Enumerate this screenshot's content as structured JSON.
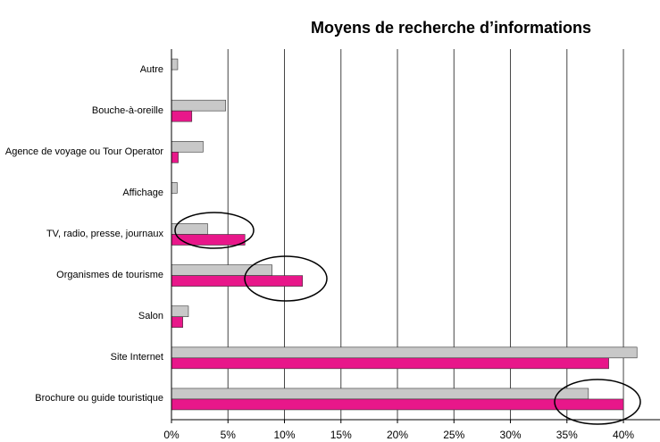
{
  "chart_data": {
    "type": "hbar",
    "title": "Moyens de recherche d’informations",
    "categories": [
      "Autre",
      "Bouche-à-oreille",
      "Agence de voyage ou Tour Operator",
      "Affichage",
      "TV, radio, presse, journaux",
      "Organismes de tourisme",
      "Salon",
      "Site Internet",
      "Brochure ou guide touristique"
    ],
    "series": [
      {
        "color": "#c8c8c8",
        "values": [
          0.55,
          4.8,
          2.8,
          0.5,
          3.2,
          8.9,
          1.5,
          41.2,
          36.9
        ]
      },
      {
        "color": "#e8178a",
        "values": [
          0,
          1.8,
          0.6,
          0,
          6.5,
          11.6,
          1.0,
          38.7,
          40.0
        ]
      }
    ],
    "xlim": [
      0,
      43
    ],
    "xticks": [
      {
        "value": 0,
        "label": "0%"
      },
      {
        "value": 5,
        "label": "5%"
      },
      {
        "value": 10,
        "label": "10%"
      },
      {
        "value": 15,
        "label": "15%"
      },
      {
        "value": 20,
        "label": "20%"
      },
      {
        "value": 25,
        "label": "25%"
      },
      {
        "value": 30,
        "label": "30%"
      },
      {
        "value": 35,
        "label": "35%"
      },
      {
        "value": 40,
        "label": "40%"
      }
    ],
    "grid": true
  }
}
